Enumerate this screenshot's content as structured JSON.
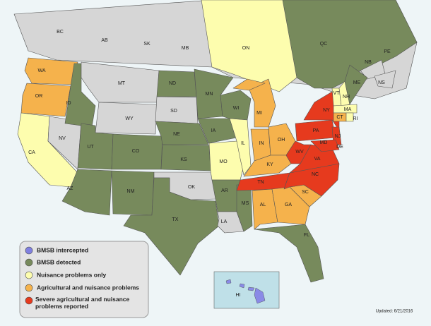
{
  "region_labels": [
    "BC",
    "AB",
    "SK",
    "MB",
    "ON",
    "QC",
    "NB",
    "PE",
    "NS",
    "WA",
    "MT",
    "ND",
    "MN",
    "WI",
    "MI",
    "ME",
    "NY",
    "VT",
    "NH",
    "MA",
    "CT",
    "RI",
    "OR",
    "ID",
    "WY",
    "SD",
    "IA",
    "NE",
    "IL",
    "IN",
    "OH",
    "PA",
    "NJ",
    "MD",
    "DE",
    "WV",
    "VA",
    "KY",
    "NV",
    "UT",
    "CO",
    "KS",
    "MO",
    "CA",
    "TN",
    "NC",
    "SC",
    "AZ",
    "NM",
    "OK",
    "AR",
    "MS",
    "AL",
    "GA",
    "TX",
    "LA",
    "FL",
    "HI"
  ],
  "legend": [
    "BMSB intercepted",
    "BMSB detected",
    "Nuisance problems only",
    "Agricultural and nuisance problems",
    "Severe agricultural and nuisance problems reported"
  ],
  "updated": "Updated: 6/21/2016"
}
